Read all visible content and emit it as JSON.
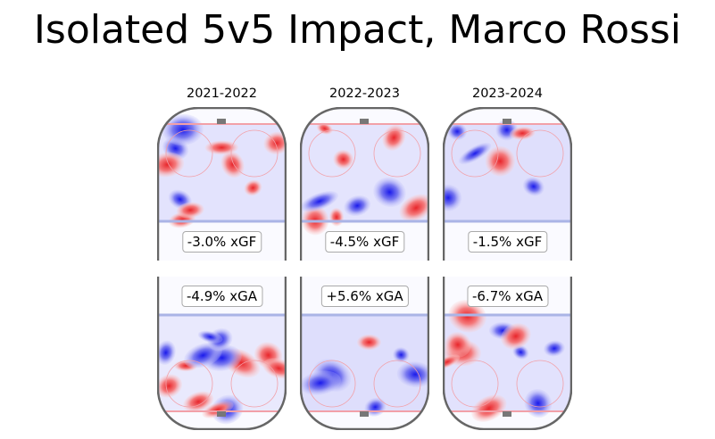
{
  "title": "Isolated 5v5 Impact, Marco Rossi",
  "chart_data": {
    "type": "heatmap",
    "title": "Isolated 5v5 Impact, Marco Rossi",
    "seasons": [
      "2021-2022",
      "2022-2023",
      "2023-2024"
    ],
    "rows": [
      {
        "metric": "xGF",
        "values": [
          "-3.0% xGF",
          "-4.5% xGF",
          "-1.5% xGF"
        ]
      },
      {
        "metric": "xGA",
        "values": [
          "-4.9% xGA",
          "+5.6% xGA",
          "-6.7% xGA"
        ]
      }
    ],
    "colors": {
      "positive": "#e8262b",
      "negative": "#1a1aeb",
      "rink": "#666666",
      "goal_line": "#f2a0a8",
      "blue_line": "#aab4e6"
    }
  }
}
